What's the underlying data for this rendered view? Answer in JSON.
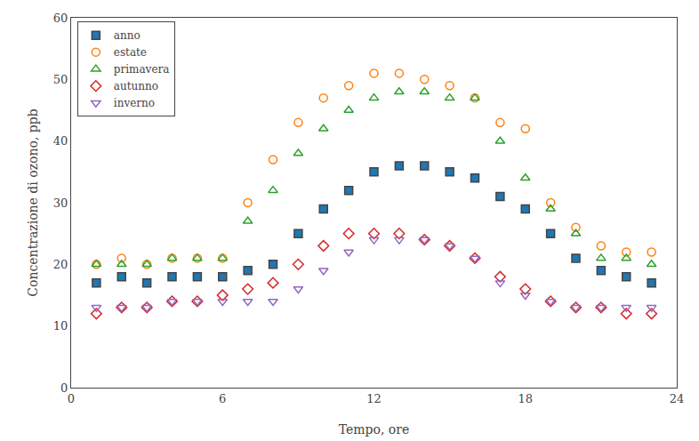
{
  "chart_data": {
    "type": "scatter",
    "xlabel": "Tempo, ore",
    "ylabel": "Concentrazione di ozono, ppb",
    "x": [
      1,
      2,
      3,
      4,
      5,
      6,
      7,
      8,
      9,
      10,
      11,
      12,
      13,
      14,
      15,
      16,
      17,
      18,
      19,
      20,
      21,
      22,
      23
    ],
    "series": [
      {
        "name": "anno",
        "marker": "square",
        "values": [
          17,
          18,
          17,
          18,
          18,
          18,
          19,
          20,
          25,
          29,
          32,
          35,
          36,
          36,
          35,
          34,
          31,
          29,
          25,
          21,
          19,
          18,
          17
        ]
      },
      {
        "name": "estate",
        "marker": "circle-open",
        "values": [
          20,
          21,
          20,
          21,
          21,
          21,
          30,
          37,
          43,
          47,
          49,
          51,
          51,
          50,
          49,
          47,
          43,
          42,
          30,
          26,
          23,
          22,
          22
        ]
      },
      {
        "name": "primavera",
        "marker": "triangle-up-open",
        "values": [
          20,
          20,
          20,
          21,
          21,
          21,
          27,
          32,
          38,
          42,
          45,
          47,
          48,
          48,
          47,
          47,
          40,
          34,
          29,
          25,
          21,
          21,
          20
        ]
      },
      {
        "name": "autunno",
        "marker": "diamond-open",
        "values": [
          12,
          13,
          13,
          14,
          14,
          15,
          16,
          17,
          20,
          23,
          25,
          25,
          25,
          24,
          23,
          21,
          18,
          16,
          14,
          13,
          13,
          12,
          12
        ]
      },
      {
        "name": "inverno",
        "marker": "triangle-down-open",
        "values": [
          13,
          13,
          13,
          14,
          14,
          14,
          14,
          14,
          16,
          19,
          22,
          24,
          24,
          24,
          23,
          21,
          17,
          15,
          14,
          13,
          13,
          13,
          13
        ]
      }
    ],
    "xlim": [
      0,
      24
    ],
    "ylim": [
      0,
      60
    ],
    "xticks": [
      0,
      6,
      12,
      18,
      24
    ],
    "yticks": [
      0,
      10,
      20,
      30,
      40,
      50,
      60
    ],
    "grid": false,
    "legend": "upper left"
  }
}
